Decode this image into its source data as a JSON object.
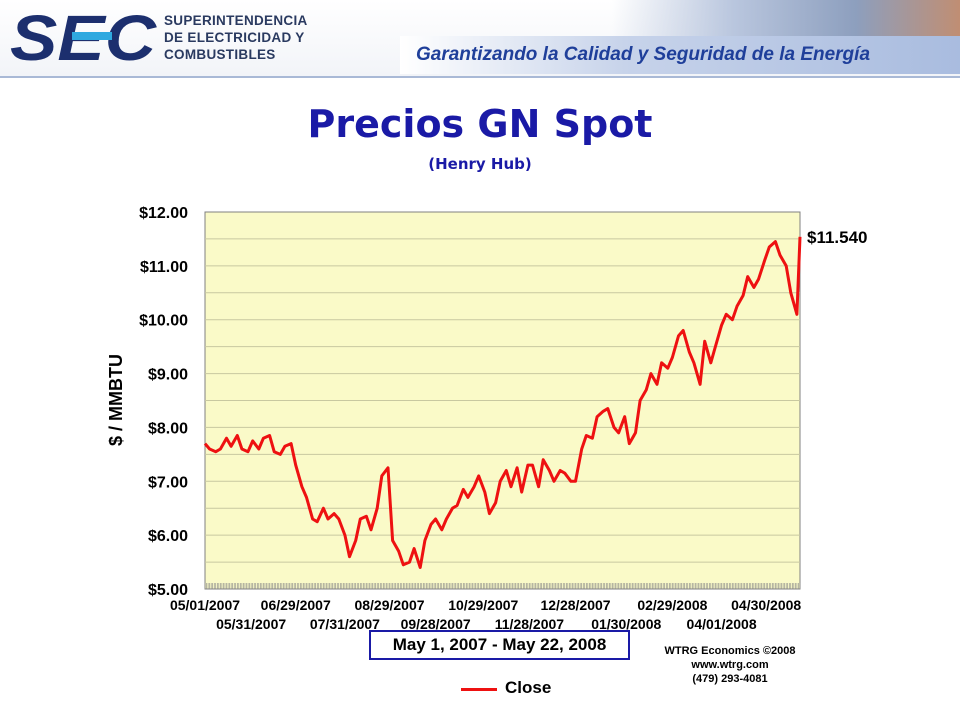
{
  "header": {
    "logo_text": "SEC",
    "org_line1": "SUPERINTENDENCIA",
    "org_line2": "DE ELECTRICIDAD Y",
    "org_line3": "COMBUSTIBLES",
    "slogan": "Garantizando la Calidad y Seguridad de la Energía"
  },
  "title": "Precios GN Spot",
  "subtitle": "(Henry Hub)",
  "range_label": "May 1, 2007 - May 22, 2008",
  "credit": {
    "line1": "WTRG Economics  ©2008",
    "line2": "www.wtrg.com",
    "line3": "(479) 293-4081"
  },
  "legend_label": "Close",
  "colors": {
    "title": "#1a1aa6",
    "series": "#ee1111",
    "plot_bg": "#fafac8",
    "gridline": "#c8c8a0"
  },
  "chart_data": {
    "type": "line",
    "ylabel": "$ / MMBTU",
    "ylim": [
      5,
      12
    ],
    "yticks": [
      "$5.00",
      "$6.00",
      "$7.00",
      "$8.00",
      "$9.00",
      "$10.00",
      "$11.00",
      "$12.00"
    ],
    "xlim": [
      "2007-05-01",
      "2008-05-22"
    ],
    "xticks_row1": [
      "05/01/2007",
      "06/29/2007",
      "08/29/2007",
      "10/29/2007",
      "12/28/2007",
      "02/29/2008",
      "04/30/2008"
    ],
    "xticks_row2": [
      "05/31/2007",
      "07/31/2007",
      "09/28/2007",
      "11/28/2007",
      "01/30/2008",
      "04/01/2008"
    ],
    "grid": true,
    "last_value_label": "$11.540",
    "series": [
      {
        "name": "Close",
        "x": [
          "2007-05-01",
          "2007-05-04",
          "2007-05-08",
          "2007-05-11",
          "2007-05-15",
          "2007-05-18",
          "2007-05-22",
          "2007-05-25",
          "2007-05-29",
          "2007-06-01",
          "2007-06-05",
          "2007-06-08",
          "2007-06-12",
          "2007-06-15",
          "2007-06-19",
          "2007-06-22",
          "2007-06-26",
          "2007-06-29",
          "2007-07-03",
          "2007-07-06",
          "2007-07-10",
          "2007-07-13",
          "2007-07-17",
          "2007-07-20",
          "2007-07-24",
          "2007-07-27",
          "2007-07-31",
          "2007-08-03",
          "2007-08-07",
          "2007-08-10",
          "2007-08-14",
          "2007-08-17",
          "2007-08-21",
          "2007-08-24",
          "2007-08-28",
          "2007-08-31",
          "2007-09-04",
          "2007-09-07",
          "2007-09-11",
          "2007-09-14",
          "2007-09-18",
          "2007-09-21",
          "2007-09-25",
          "2007-09-28",
          "2007-10-02",
          "2007-10-05",
          "2007-10-09",
          "2007-10-12",
          "2007-10-16",
          "2007-10-19",
          "2007-10-23",
          "2007-10-26",
          "2007-10-30",
          "2007-11-02",
          "2007-11-06",
          "2007-11-09",
          "2007-11-13",
          "2007-11-16",
          "2007-11-20",
          "2007-11-23",
          "2007-11-27",
          "2007-11-30",
          "2007-12-04",
          "2007-12-07",
          "2007-12-11",
          "2007-12-14",
          "2007-12-18",
          "2007-12-21",
          "2007-12-25",
          "2007-12-28",
          "2008-01-01",
          "2008-01-04",
          "2008-01-08",
          "2008-01-11",
          "2008-01-15",
          "2008-01-18",
          "2008-01-22",
          "2008-01-25",
          "2008-01-29",
          "2008-02-01",
          "2008-02-05",
          "2008-02-08",
          "2008-02-12",
          "2008-02-15",
          "2008-02-19",
          "2008-02-22",
          "2008-02-26",
          "2008-02-29",
          "2008-03-04",
          "2008-03-07",
          "2008-03-11",
          "2008-03-14",
          "2008-03-18",
          "2008-03-21",
          "2008-03-25",
          "2008-03-28",
          "2008-04-01",
          "2008-04-04",
          "2008-04-08",
          "2008-04-11",
          "2008-04-15",
          "2008-04-18",
          "2008-04-22",
          "2008-04-25",
          "2008-04-29",
          "2008-05-02",
          "2008-05-06",
          "2008-05-09",
          "2008-05-13",
          "2008-05-16",
          "2008-05-20",
          "2008-05-22"
        ],
        "values": [
          7.7,
          7.6,
          7.55,
          7.6,
          7.8,
          7.65,
          7.85,
          7.6,
          7.55,
          7.75,
          7.6,
          7.8,
          7.85,
          7.55,
          7.5,
          7.65,
          7.7,
          7.3,
          6.9,
          6.7,
          6.3,
          6.25,
          6.5,
          6.3,
          6.4,
          6.3,
          6.0,
          5.6,
          5.9,
          6.3,
          6.35,
          6.1,
          6.5,
          7.1,
          7.25,
          5.9,
          5.7,
          5.45,
          5.5,
          5.75,
          5.4,
          5.9,
          6.2,
          6.3,
          6.1,
          6.3,
          6.5,
          6.55,
          6.85,
          6.7,
          6.9,
          7.1,
          6.8,
          6.4,
          6.6,
          7.0,
          7.2,
          6.9,
          7.25,
          6.8,
          7.3,
          7.3,
          6.9,
          7.4,
          7.2,
          7.0,
          7.2,
          7.15,
          7.0,
          7.0,
          7.6,
          7.85,
          7.8,
          8.2,
          8.3,
          8.35,
          8.0,
          7.9,
          8.2,
          7.7,
          7.9,
          8.5,
          8.7,
          9.0,
          8.8,
          9.2,
          9.1,
          9.3,
          9.7,
          9.8,
          9.4,
          9.2,
          8.8,
          9.6,
          9.2,
          9.5,
          9.9,
          10.1,
          10.0,
          10.25,
          10.45,
          10.8,
          10.6,
          10.75,
          11.1,
          11.35,
          11.45,
          11.2,
          11.0,
          10.5,
          10.1,
          11.54
        ]
      }
    ]
  }
}
